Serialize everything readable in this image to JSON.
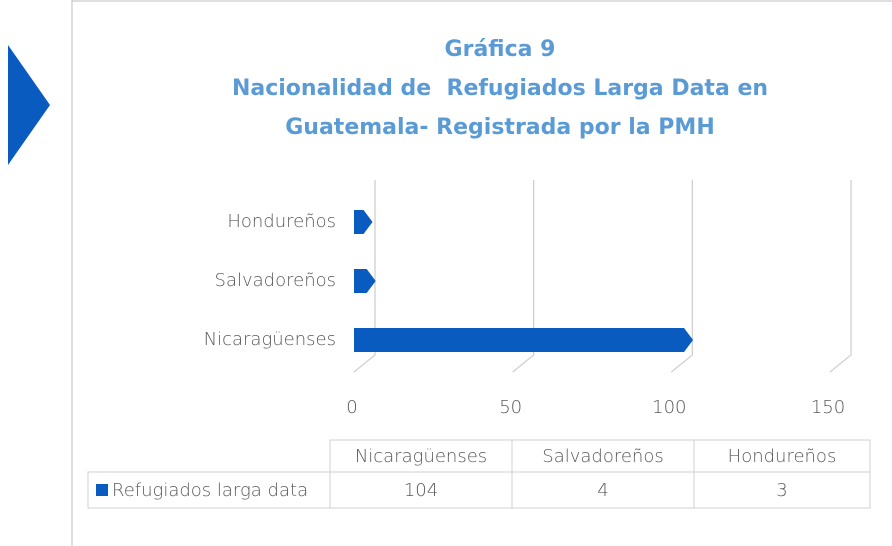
{
  "chart_data": {
    "type": "bar",
    "orientation": "horizontal",
    "title": [
      "Gráfica 9",
      "Nacionalidad de  Refugiados Larga Data en",
      "Guatemala- Registrada por la PMH"
    ],
    "categories": [
      "Nicaragüenses",
      "Salvadoreños",
      "Hondureños"
    ],
    "series": [
      {
        "name": "Refugiados larga data",
        "color": "#0a5bbf",
        "values": [
          104,
          4,
          3
        ]
      }
    ],
    "xlim": [
      0,
      150
    ],
    "xticks": [
      0,
      50,
      100,
      150
    ],
    "grid": true,
    "data_table": true
  }
}
